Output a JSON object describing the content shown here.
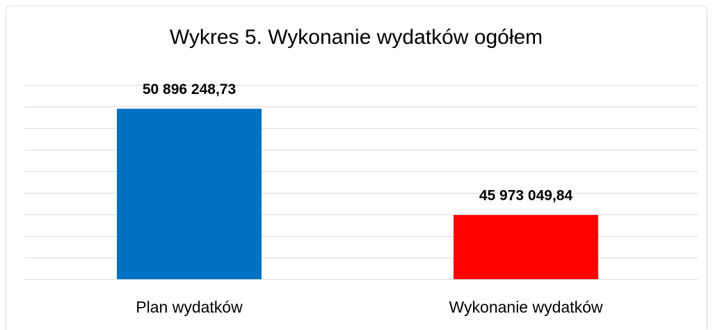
{
  "chart_data": {
    "type": "bar",
    "title": "Wykres 5. Wykonanie wydatków ogółem",
    "categories": [
      "Plan wydatków",
      "Wykonanie wydatków"
    ],
    "values": [
      50896248.73,
      45973049.84
    ],
    "value_labels": [
      "50 896 248,73",
      "45 973 049,84"
    ],
    "colors": [
      "#0070c0",
      "#ff0000"
    ],
    "ylim": [
      43000000,
      52000000
    ],
    "yticks": [
      43000000,
      44000000,
      45000000,
      46000000,
      47000000,
      48000000,
      49000000,
      50000000,
      51000000,
      52000000
    ],
    "grid": true
  }
}
